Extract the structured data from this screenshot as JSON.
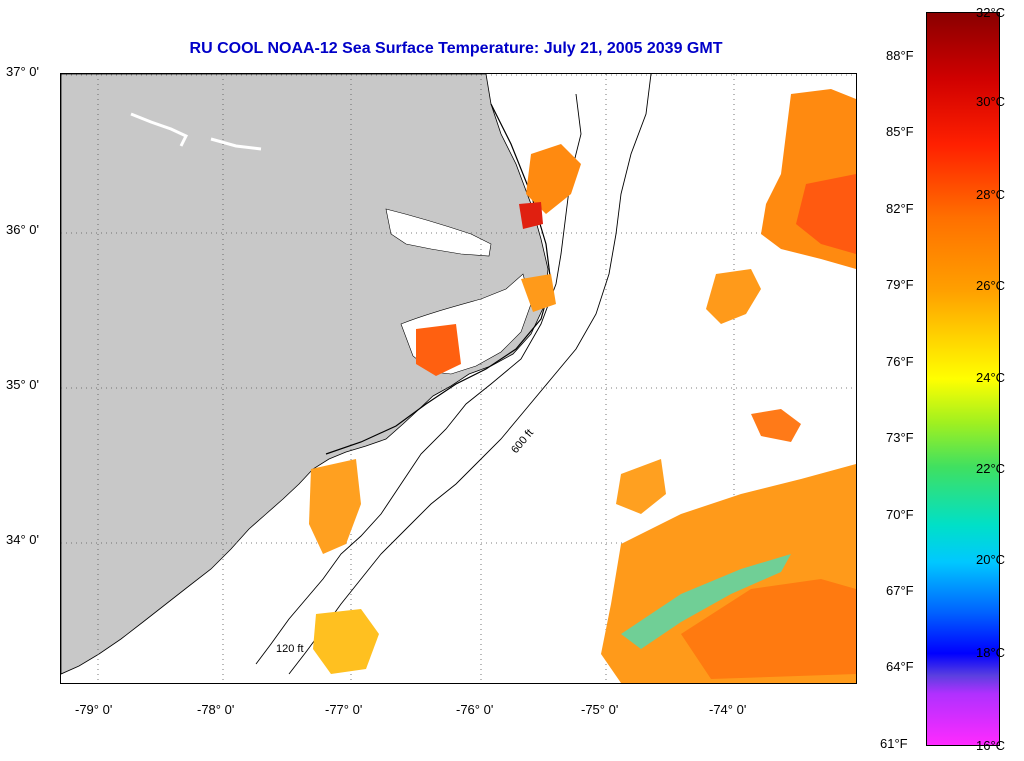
{
  "title": "RU COOL  NOAA-12  Sea Surface Temperature:  July 21, 2005 2039 GMT",
  "latitude_labels": [
    "37° 0'",
    "36° 0'",
    "35° 0'",
    "34° 0'"
  ],
  "longitude_labels": [
    "-79° 0'",
    "-78° 0'",
    "-77° 0'",
    "-76° 0'",
    "-75° 0'",
    "-74° 0'"
  ],
  "contour_labels": [
    "120 ft",
    "600 ft"
  ],
  "colorbar": {
    "celsius": [
      "32°C",
      "30°C",
      "28°C",
      "26°C",
      "24°C",
      "22°C",
      "20°C",
      "18°C",
      "16°C"
    ],
    "fahrenheit": [
      "88°F",
      "85°F",
      "82°F",
      "79°F",
      "76°F",
      "73°F",
      "70°F",
      "67°F",
      "64°F",
      "61°F"
    ]
  },
  "colors": {
    "title": "#0000c8",
    "land": "#c8c8c8",
    "warm_sst": "#ff9a1a",
    "hot_sst": "#ff3a10",
    "cool_sst": "#40e0c0"
  }
}
